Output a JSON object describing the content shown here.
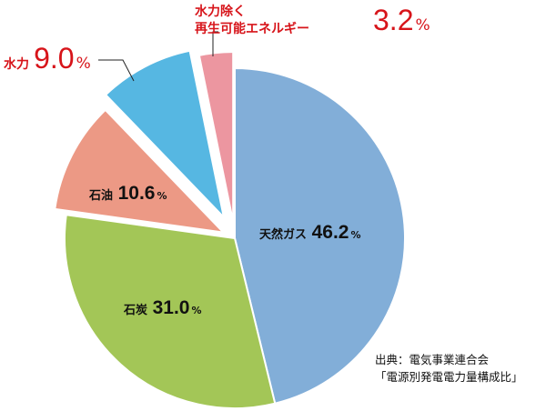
{
  "chart_data": {
    "type": "pie",
    "start": "top",
    "direction": "clockwise",
    "slices": [
      {
        "label": "天然ガス",
        "value": 46.2,
        "value_text": "46.2",
        "color": "#82aed8",
        "exploded": false
      },
      {
        "label": "石炭",
        "value": 31.0,
        "value_text": "31.0",
        "color": "#a3c657",
        "exploded": false
      },
      {
        "label": "石油",
        "value": 10.6,
        "value_text": "10.6",
        "color": "#ec9985",
        "exploded": true
      },
      {
        "label": "水力",
        "value": 9.0,
        "value_text": "9.0",
        "color": "#56b7e2",
        "exploded": true
      },
      {
        "label_line1": "水力除く",
        "label_line2": "再生可能エネルギー",
        "value": 3.2,
        "value_text": "3.2",
        "color": "#ec96a0",
        "exploded": true
      }
    ],
    "unit": "%",
    "callout_color": "#d7141a"
  },
  "source": {
    "line1": "出典：電気事業連合会",
    "line2": "「電源別発電電力量構成比」"
  }
}
